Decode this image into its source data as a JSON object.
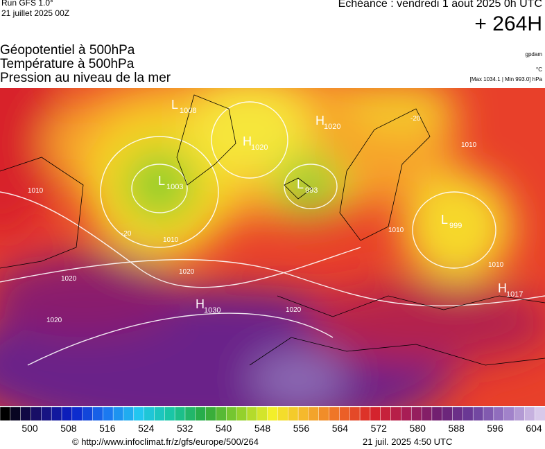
{
  "header": {
    "run": "Run GFS 1.0°",
    "run_date": "21 juillet 2025 00Z",
    "valid": "Echéance : vendredi 1 aout 2025 0h UTC",
    "lead": "+ 264H"
  },
  "fields": {
    "geopotential": "Géopotentiel à 500hPa",
    "temperature": "Température à 500hPa",
    "pressure": "Pression au niveau de la mer",
    "geo_unit": "gpdam",
    "temp_unit": "°C",
    "extremes": "[Max 1034.1 | Min 993.0] hPa"
  },
  "centers": [
    {
      "kind": "L",
      "value": "1008"
    },
    {
      "kind": "H",
      "value": "1020"
    },
    {
      "kind": "H",
      "value": "1020"
    },
    {
      "kind": "L",
      "value": "1003"
    },
    {
      "kind": "L",
      "value": "993"
    },
    {
      "kind": "L",
      "value": "999"
    },
    {
      "kind": "H",
      "value": "1030"
    },
    {
      "kind": "H",
      "value": "1017"
    }
  ],
  "isobars": [
    "1010",
    "1010",
    "1020",
    "1020",
    "1010",
    "1020",
    "1010",
    "1010",
    "1020",
    "-20",
    "-20"
  ],
  "colorbar": {
    "labels": [
      500,
      508,
      516,
      524,
      532,
      540,
      548,
      556,
      564,
      572,
      580,
      588,
      596,
      604
    ]
  },
  "footer": {
    "source": "© http://www.infoclimat.fr/z/gfs/europe/500/264",
    "generated": "21 juil. 2025  4:50 UTC"
  }
}
